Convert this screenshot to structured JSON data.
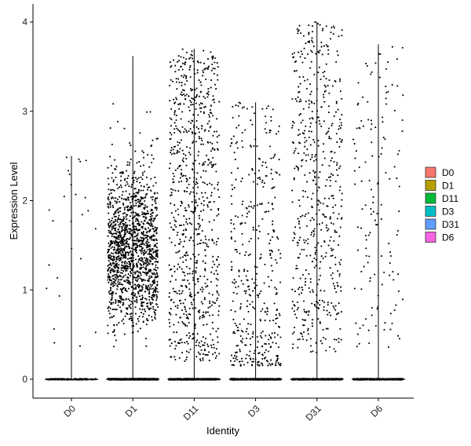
{
  "chart_data": {
    "type": "scatter",
    "subtype": "violin-jitter",
    "title": "",
    "xlabel": "Identity",
    "ylabel": "Expression Level",
    "ylim": [
      -0.2,
      4.2
    ],
    "yticks": [
      0,
      1,
      2,
      3,
      4
    ],
    "grid": false,
    "legend_position": "right",
    "legend_title": "",
    "categories": [
      "D0",
      "D1",
      "D11",
      "D3",
      "D31",
      "D6"
    ],
    "colors": [
      "#F8766D",
      "#B79F00",
      "#00BA38",
      "#00BFC4",
      "#619CFF",
      "#F564E3"
    ],
    "series": [
      {
        "name": "D0",
        "max": 2.5,
        "zero_points": 150,
        "nonzero_points": 26,
        "nonzero_range": [
          0.3,
          2.5
        ]
      },
      {
        "name": "D1",
        "max": 3.62,
        "zero_points": 700,
        "nonzero_points": 1500,
        "nonzero_range": [
          0.2,
          3.62
        ]
      },
      {
        "name": "D11",
        "max": 3.7,
        "zero_points": 500,
        "nonzero_points": 800,
        "nonzero_range": [
          0.2,
          3.7
        ]
      },
      {
        "name": "D3",
        "max": 3.1,
        "zero_points": 500,
        "nonzero_points": 420,
        "nonzero_range": [
          0.15,
          3.1
        ]
      },
      {
        "name": "D31",
        "max": 4.0,
        "zero_points": 500,
        "nonzero_points": 560,
        "nonzero_range": [
          0.3,
          4.0
        ]
      },
      {
        "name": "D6",
        "max": 3.75,
        "zero_points": 400,
        "nonzero_points": 140,
        "nonzero_range": [
          0.3,
          3.75
        ]
      }
    ]
  }
}
